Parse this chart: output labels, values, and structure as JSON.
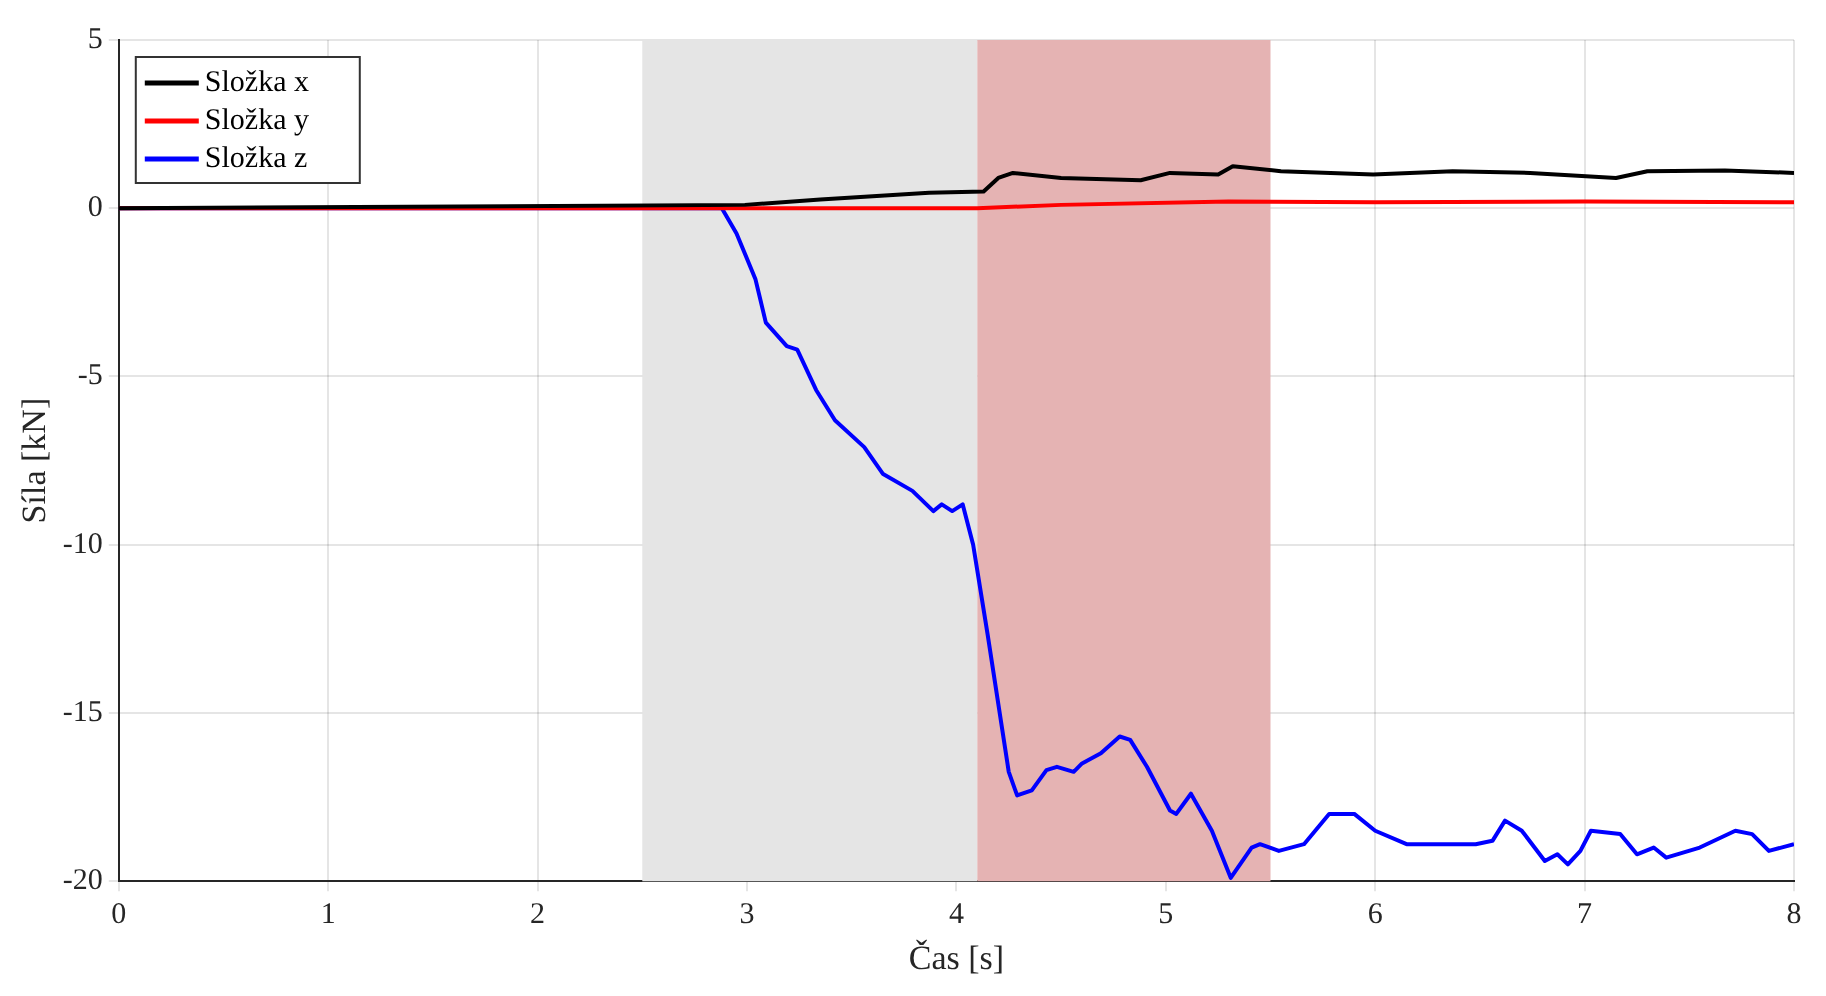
{
  "chart_data": {
    "type": "line",
    "xlabel": "Čas [s]",
    "ylabel": "Síla [kN]",
    "xlim": [
      0,
      8
    ],
    "ylim": [
      -20,
      5
    ],
    "xticks": [
      0,
      1,
      2,
      3,
      4,
      5,
      6,
      7,
      8
    ],
    "yticks": [
      -20,
      -15,
      -10,
      -5,
      0,
      5
    ],
    "grid": true,
    "legend": "top left",
    "marker": "none",
    "line_style": "solid",
    "bands": [
      {
        "axis": "x",
        "from": 2.5,
        "to": 4.1,
        "color": "#e5e5e5"
      },
      {
        "axis": "x",
        "from": 4.1,
        "to": 5.5,
        "color": "#e5b3b3"
      }
    ],
    "series": [
      {
        "name": "Složka x",
        "color": "#000000",
        "x": [
          0,
          2.99,
          3.35,
          3.87,
          4.13,
          4.2,
          4.27,
          4.5,
          4.88,
          5.02,
          5.25,
          5.32,
          5.55,
          5.99,
          6.37,
          6.74,
          7.15,
          7.3,
          7.67,
          8
        ],
        "values": [
          0,
          0.1,
          0.26,
          0.46,
          0.5,
          0.9,
          1.05,
          0.9,
          0.83,
          1.05,
          1,
          1.25,
          1.1,
          1,
          1.1,
          1.05,
          0.9,
          1.1,
          1.12,
          1.05
        ]
      },
      {
        "name": "Složka y",
        "color": "#ff0000",
        "x": [
          0,
          4.1,
          4.5,
          5.3,
          6,
          7,
          8
        ],
        "values": [
          0,
          0,
          0.1,
          0.2,
          0.18,
          0.2,
          0.18
        ]
      },
      {
        "name": "Složka z",
        "color": "#0000ff",
        "x": [
          0,
          2.88,
          2.95,
          3.04,
          3.09,
          3.19,
          3.24,
          3.33,
          3.42,
          3.56,
          3.65,
          3.79,
          3.89,
          3.93,
          3.98,
          4.03,
          4.08,
          4.15,
          4.25,
          4.29,
          4.36,
          4.43,
          4.48,
          4.56,
          4.6,
          4.69,
          4.78,
          4.83,
          4.91,
          5.02,
          5.05,
          5.12,
          5.22,
          5.31,
          5.41,
          5.45,
          5.54,
          5.66,
          5.78,
          5.9,
          6,
          6.15,
          6.32,
          6.48,
          6.56,
          6.62,
          6.7,
          6.81,
          6.87,
          6.92,
          6.98,
          7.03,
          7.17,
          7.25,
          7.33,
          7.39,
          7.55,
          7.72,
          7.8,
          7.88,
          8
        ],
        "values": [
          0,
          0,
          -0.75,
          -2.1,
          -3.4,
          -4.1,
          -4.2,
          -5.4,
          -6.3,
          -7.1,
          -7.9,
          -8.4,
          -9,
          -8.8,
          -9,
          -8.8,
          -10,
          -12.7,
          -16.75,
          -17.45,
          -17.3,
          -16.7,
          -16.6,
          -16.75,
          -16.5,
          -16.2,
          -15.7,
          -15.8,
          -16.6,
          -17.9,
          -18,
          -17.4,
          -18.5,
          -19.9,
          -19,
          -18.9,
          -19.1,
          -18.9,
          -18,
          -18,
          -18.5,
          -18.9,
          -18.9,
          -18.9,
          -18.8,
          -18.2,
          -18.5,
          -19.4,
          -19.2,
          -19.5,
          -19.1,
          -18.5,
          -18.6,
          -19.2,
          -19,
          -19.3,
          -19,
          -18.5,
          -18.6,
          -19.1,
          -18.9
        ]
      }
    ]
  }
}
